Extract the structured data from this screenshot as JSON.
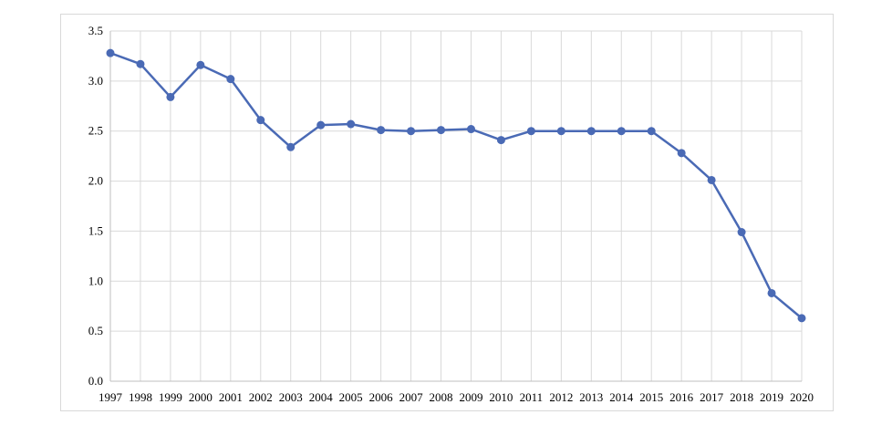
{
  "chart_data": {
    "type": "line",
    "title": "",
    "xlabel": "",
    "ylabel": "",
    "x": [
      "1997",
      "1998",
      "1999",
      "2000",
      "2001",
      "2002",
      "2003",
      "2004",
      "2005",
      "2006",
      "2007",
      "2008",
      "2009",
      "2010",
      "2011",
      "2012",
      "2013",
      "2014",
      "2015",
      "2016",
      "2017",
      "2018",
      "2019",
      "2020"
    ],
    "series": [
      {
        "values": [
          3.28,
          3.17,
          2.84,
          3.16,
          3.02,
          2.61,
          2.34,
          2.56,
          2.57,
          2.51,
          2.5,
          2.51,
          2.52,
          2.41,
          2.5,
          2.5,
          2.5,
          2.5,
          2.5,
          2.28,
          2.01,
          1.49,
          0.88,
          0.63
        ],
        "color": "#4a6ab5"
      }
    ],
    "ylim": [
      0,
      3.5
    ],
    "yticks": [
      "0.0",
      "0.5",
      "1.0",
      "1.5",
      "2.0",
      "2.5",
      "3.0",
      "3.5"
    ],
    "grid": true,
    "legend": "none"
  }
}
